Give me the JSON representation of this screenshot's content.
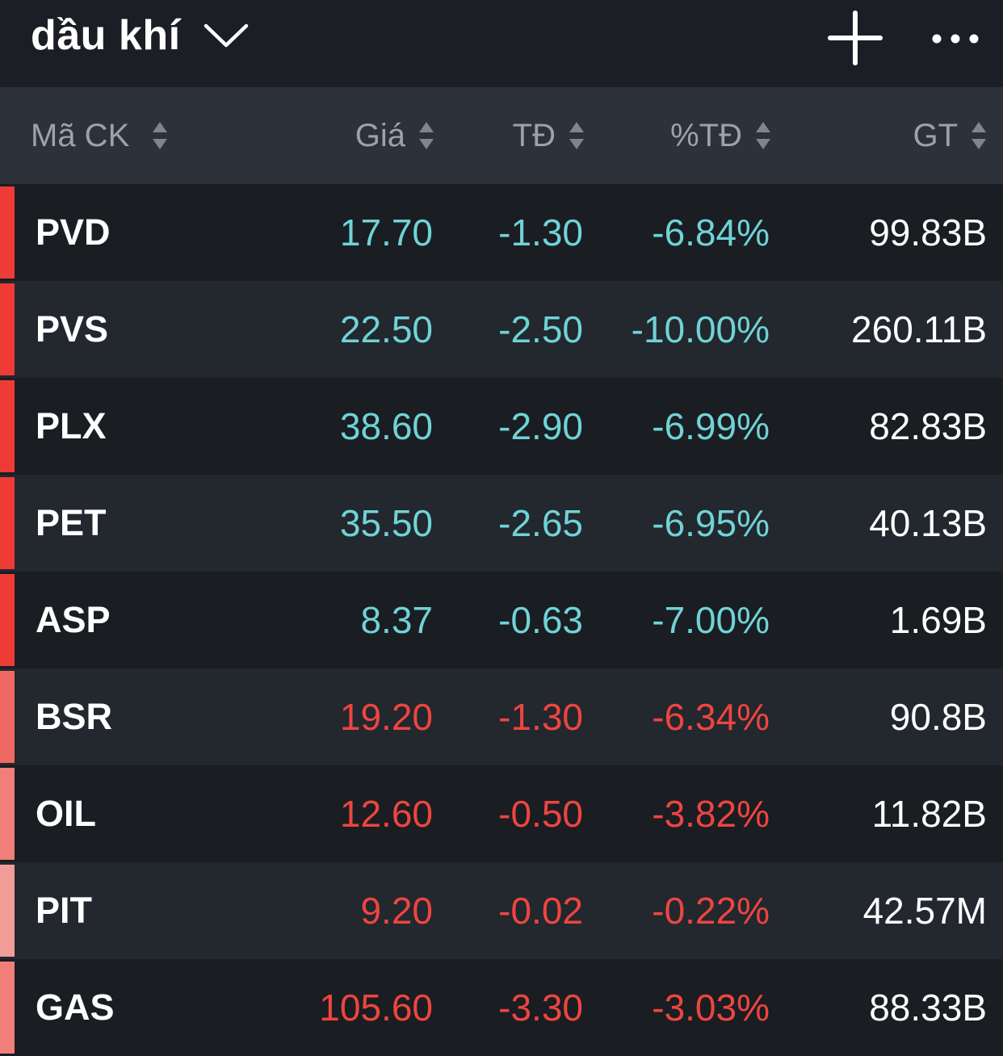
{
  "watchlist": {
    "title": "dầu khí"
  },
  "icons": {
    "dropdown": "chevron-down-icon",
    "add": "plus-icon",
    "more": "more-horizontal-icon",
    "sort": "sort-icon"
  },
  "colors": {
    "down_teal": "#6fd3d6",
    "down_red": "#ee4540",
    "neutral": "#ffffff",
    "header_text": "#9aa3ad"
  },
  "table": {
    "headers": {
      "symbol": "Mã CK",
      "price": "Giá",
      "change": "TĐ",
      "pct": "%TĐ",
      "value": "GT"
    },
    "rows": [
      {
        "symbol": "PVD",
        "price": "17.70",
        "change": "-1.30",
        "pct": "-6.84%",
        "value": "99.83B",
        "color": "#6fd3d6",
        "strip": "#ee3b35"
      },
      {
        "symbol": "PVS",
        "price": "22.50",
        "change": "-2.50",
        "pct": "-10.00%",
        "value": "260.11B",
        "color": "#6fd3d6",
        "strip": "#ee3b35"
      },
      {
        "symbol": "PLX",
        "price": "38.60",
        "change": "-2.90",
        "pct": "-6.99%",
        "value": "82.83B",
        "color": "#6fd3d6",
        "strip": "#ee3b35"
      },
      {
        "symbol": "PET",
        "price": "35.50",
        "change": "-2.65",
        "pct": "-6.95%",
        "value": "40.13B",
        "color": "#6fd3d6",
        "strip": "#ee3b35"
      },
      {
        "symbol": "ASP",
        "price": "8.37",
        "change": "-0.63",
        "pct": "-7.00%",
        "value": "1.69B",
        "color": "#6fd3d6",
        "strip": "#ee3b35"
      },
      {
        "symbol": "BSR",
        "price": "19.20",
        "change": "-1.30",
        "pct": "-6.34%",
        "value": "90.8B",
        "color": "#ee4540",
        "strip": "#ef6a63"
      },
      {
        "symbol": "OIL",
        "price": "12.60",
        "change": "-0.50",
        "pct": "-3.82%",
        "value": "11.82B",
        "color": "#ee4540",
        "strip": "#f07f79"
      },
      {
        "symbol": "PIT",
        "price": "9.20",
        "change": "-0.02",
        "pct": "-0.22%",
        "value": "42.57M",
        "color": "#ee4540",
        "strip": "#f29c98"
      },
      {
        "symbol": "GAS",
        "price": "105.60",
        "change": "-3.30",
        "pct": "-3.03%",
        "value": "88.33B",
        "color": "#ee4540",
        "strip": "#f07f79"
      }
    ]
  }
}
